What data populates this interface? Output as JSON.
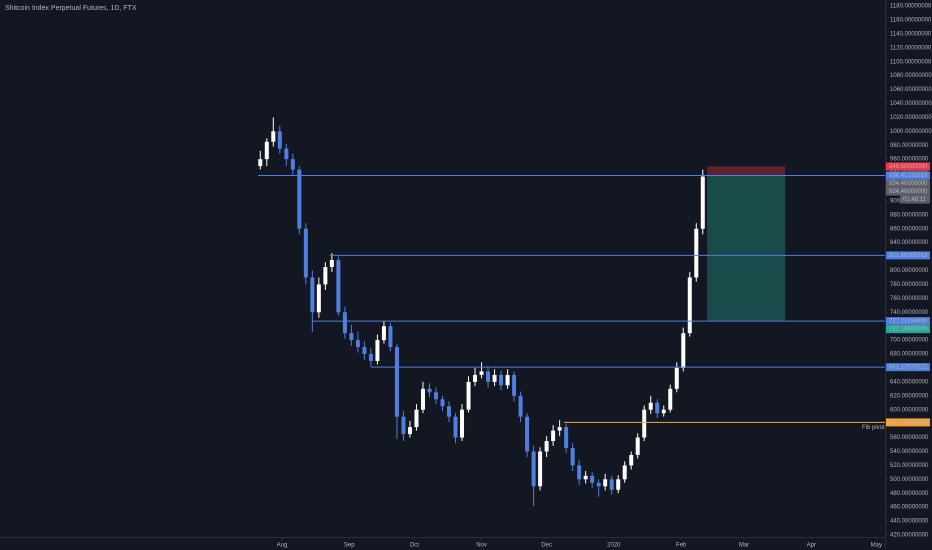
{
  "chart_data": {
    "type": "candlestick",
    "title": "Shitcoin Index Perpetual Futures, 1D, FTX",
    "up_color": "#ffffff",
    "down_color": "#4f7fe0",
    "xlim": [
      -130,
      278
    ],
    "ylim": [
      420,
      1188.62
    ],
    "xticks": [
      {
        "value": 0,
        "label": "Aug"
      },
      {
        "value": 31,
        "label": "Sep"
      },
      {
        "value": 61,
        "label": "Oct"
      },
      {
        "value": 92,
        "label": "Nov"
      },
      {
        "value": 122,
        "label": "Dec"
      },
      {
        "value": 153,
        "label": "2020"
      },
      {
        "value": 184,
        "label": "Feb"
      },
      {
        "value": 213,
        "label": "Mar"
      },
      {
        "value": 244,
        "label": "Apr"
      },
      {
        "value": 274,
        "label": "May"
      }
    ],
    "yticks": [
      {
        "value": 420,
        "label": "420.00000000"
      },
      {
        "value": 440,
        "label": "440.00000000"
      },
      {
        "value": 460,
        "label": "460.00000000"
      },
      {
        "value": 480,
        "label": "480.00000000"
      },
      {
        "value": 500,
        "label": "500.00000000"
      },
      {
        "value": 520,
        "label": "520.00000000"
      },
      {
        "value": 540,
        "label": "540.00000000"
      },
      {
        "value": 560,
        "label": "560.00000000"
      },
      {
        "value": 580,
        "label": "580.00000000"
      },
      {
        "value": 600,
        "label": "600.00000000"
      },
      {
        "value": 620,
        "label": "620.00000000"
      },
      {
        "value": 640,
        "label": "640.00000000"
      },
      {
        "value": 660,
        "label": "660.00000000"
      },
      {
        "value": 680,
        "label": "680.00000000"
      },
      {
        "value": 700,
        "label": "700.00000000"
      },
      {
        "value": 720,
        "label": "720.00000000"
      },
      {
        "value": 740,
        "label": "740.00000000"
      },
      {
        "value": 760,
        "label": "760.00000000"
      },
      {
        "value": 780,
        "label": "780.00000000"
      },
      {
        "value": 800,
        "label": "800.00000000"
      },
      {
        "value": 820,
        "label": "820.00000000"
      },
      {
        "value": 840,
        "label": "840.00000000"
      },
      {
        "value": 860,
        "label": "860.00000000"
      },
      {
        "value": 880,
        "label": "880.00000000"
      },
      {
        "value": 900,
        "label": "900.00000000"
      },
      {
        "value": 920,
        "label": "920.00000000"
      },
      {
        "value": 940,
        "label": "940.00000000"
      },
      {
        "value": 960,
        "label": "960.00000000"
      },
      {
        "value": 980,
        "label": "980.00000000"
      },
      {
        "value": 1000,
        "label": "1000.00000000"
      },
      {
        "value": 1020,
        "label": "1020.00000000"
      },
      {
        "value": 1040,
        "label": "1040.00000000"
      },
      {
        "value": 1060,
        "label": "1060.00000000"
      },
      {
        "value": 1080,
        "label": "1080.00000000"
      },
      {
        "value": 1100,
        "label": "1100.00000000"
      },
      {
        "value": 1120,
        "label": "1120.00000000"
      },
      {
        "value": 1140,
        "label": "1140.00000000"
      },
      {
        "value": 1160,
        "label": "1160.00000000"
      },
      {
        "value": 1180,
        "label": "1180.00000000"
      }
    ],
    "x": [
      -10,
      -7,
      -4,
      -1,
      2,
      5,
      8,
      11,
      14,
      17,
      20,
      23,
      26,
      29,
      32,
      35,
      38,
      41,
      44,
      47,
      50,
      53,
      56,
      59,
      62,
      65,
      68,
      71,
      74,
      77,
      80,
      83,
      86,
      89,
      92,
      95,
      98,
      101,
      104,
      107,
      110,
      113,
      116,
      119,
      122,
      125,
      128,
      131,
      134,
      137,
      140,
      143,
      146,
      149,
      152,
      155,
      158,
      161,
      164,
      167,
      170,
      173,
      176,
      179,
      182,
      185,
      188,
      191,
      194
    ],
    "open": [
      950,
      960,
      985,
      1000,
      975,
      960,
      945,
      860,
      790,
      740,
      780,
      805,
      815,
      740,
      710,
      700,
      690,
      680,
      670,
      700,
      720,
      690,
      590,
      565,
      575,
      600,
      630,
      625,
      615,
      605,
      590,
      560,
      600,
      640,
      650,
      655,
      640,
      650,
      635,
      650,
      620,
      590,
      540,
      490,
      540,
      555,
      570,
      575,
      545,
      520,
      500,
      505,
      495,
      490,
      500,
      485,
      500,
      520,
      535,
      560,
      600,
      610,
      595,
      600,
      630,
      660,
      710,
      790,
      860
    ],
    "high": [
      972,
      990,
      1020,
      1008,
      982,
      968,
      950,
      868,
      800,
      790,
      812,
      825,
      820,
      748,
      722,
      712,
      698,
      688,
      708,
      728,
      725,
      695,
      598,
      584,
      608,
      640,
      638,
      632,
      620,
      612,
      595,
      608,
      648,
      660,
      668,
      662,
      658,
      656,
      658,
      655,
      626,
      595,
      548,
      546,
      562,
      578,
      585,
      580,
      552,
      528,
      512,
      510,
      500,
      508,
      505,
      506,
      526,
      540,
      566,
      606,
      620,
      615,
      606,
      636,
      668,
      718,
      798,
      868,
      945
    ],
    "low": [
      945,
      950,
      978,
      968,
      950,
      938,
      852,
      780,
      712,
      732,
      772,
      798,
      735,
      702,
      692,
      682,
      672,
      662,
      665,
      695,
      684,
      558,
      555,
      560,
      570,
      595,
      618,
      608,
      598,
      582,
      552,
      555,
      596,
      634,
      645,
      632,
      634,
      628,
      630,
      612,
      582,
      532,
      462,
      484,
      532,
      548,
      562,
      538,
      512,
      492,
      494,
      488,
      475,
      484,
      478,
      480,
      495,
      514,
      530,
      555,
      594,
      588,
      590,
      596,
      625,
      655,
      705,
      784,
      852
    ],
    "close": [
      960,
      985,
      1000,
      975,
      960,
      945,
      860,
      790,
      740,
      780,
      805,
      815,
      740,
      710,
      700,
      690,
      680,
      670,
      700,
      720,
      690,
      590,
      565,
      575,
      600,
      630,
      625,
      615,
      605,
      590,
      560,
      600,
      640,
      650,
      655,
      640,
      650,
      635,
      650,
      620,
      590,
      540,
      490,
      540,
      555,
      570,
      575,
      545,
      520,
      500,
      505,
      495,
      490,
      500,
      485,
      500,
      520,
      535,
      560,
      600,
      610,
      595,
      600,
      630,
      660,
      710,
      790,
      860,
      935
    ],
    "levels": [
      {
        "value": 936.41332819,
        "from": -11,
        "color": "#4f7fe0"
      },
      {
        "value": 821.68305919,
        "from": 22,
        "color": "#4f7fe0"
      },
      {
        "value": 727.21198466,
        "from": 14,
        "color": "#4f7fe0"
      },
      {
        "value": 661.12570222,
        "from": 41,
        "color": "#4f7fe0"
      },
      {
        "value": 581.74674724,
        "from": 130,
        "color": "#f7a133",
        "label": "Fib pivot"
      }
    ],
    "position": {
      "x": [
        196,
        232
      ],
      "entry": 936.41332819,
      "stop": {
        "value": 949.5,
        "label": "949.50000000",
        "color": "#f23645"
      },
      "target": {
        "value": 727.1,
        "label": "727.10000000",
        "color": "#22ab94"
      }
    },
    "last_labels": [
      {
        "value": 934.4,
        "label": "934.40000000"
      },
      {
        "value": 924.4,
        "label": "924.40000000"
      }
    ],
    "countdown": "01:48:11"
  }
}
